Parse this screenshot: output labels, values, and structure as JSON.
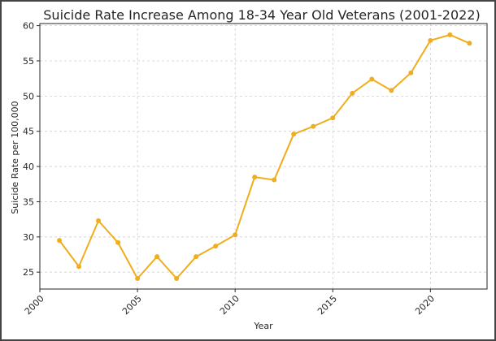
{
  "chart_data": {
    "type": "line",
    "title": "Suicide Rate Increase Among 18-34 Year Old Veterans (2001-2022)",
    "xlabel": "Year",
    "ylabel": "Suicide Rate per 100,000",
    "xlim": [
      2000,
      2022.9
    ],
    "ylim": [
      22.6,
      60.3
    ],
    "x_ticks": [
      2000,
      2005,
      2010,
      2015,
      2020
    ],
    "y_ticks": [
      25,
      30,
      35,
      40,
      45,
      50,
      55,
      60
    ],
    "grid": true,
    "series": [
      {
        "color": "#f0ad1c",
        "x": [
          2001,
          2002,
          2003,
          2004,
          2005,
          2006,
          2007,
          2008,
          2009,
          2010,
          2011,
          2012,
          2013,
          2014,
          2015,
          2016,
          2017,
          2018,
          2019,
          2020,
          2021,
          2022
        ],
        "values": [
          29.5,
          25.8,
          32.3,
          29.2,
          24.1,
          27.2,
          24.1,
          27.2,
          28.7,
          30.3,
          38.5,
          38.1,
          44.6,
          45.7,
          46.9,
          50.4,
          52.4,
          50.8,
          53.3,
          57.9,
          58.7,
          57.5
        ]
      }
    ]
  }
}
